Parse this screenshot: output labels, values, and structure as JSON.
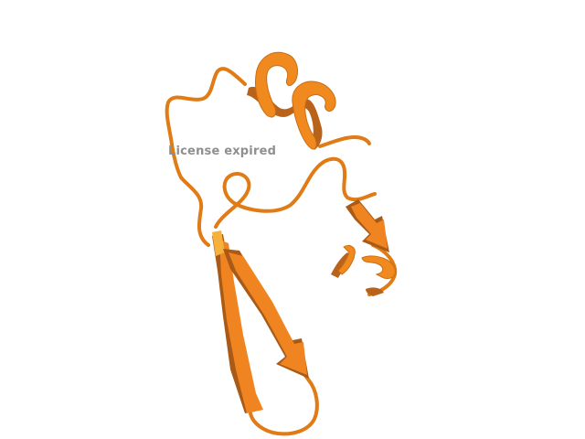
{
  "viewer": {
    "watermark_text": "License expired",
    "watermark_color": "#8f8f8f",
    "background_color": "#ffffff"
  },
  "structure": {
    "representation": "cartoon",
    "colors": {
      "coil": "#e07b16",
      "helix_front": "#f18a1e",
      "helix_back": "#b8621a",
      "helix_edge": "#c96e14",
      "strand": "#ef8420",
      "strand_dark": "#a85a16",
      "strand_highlight": "#f6b13c"
    }
  }
}
